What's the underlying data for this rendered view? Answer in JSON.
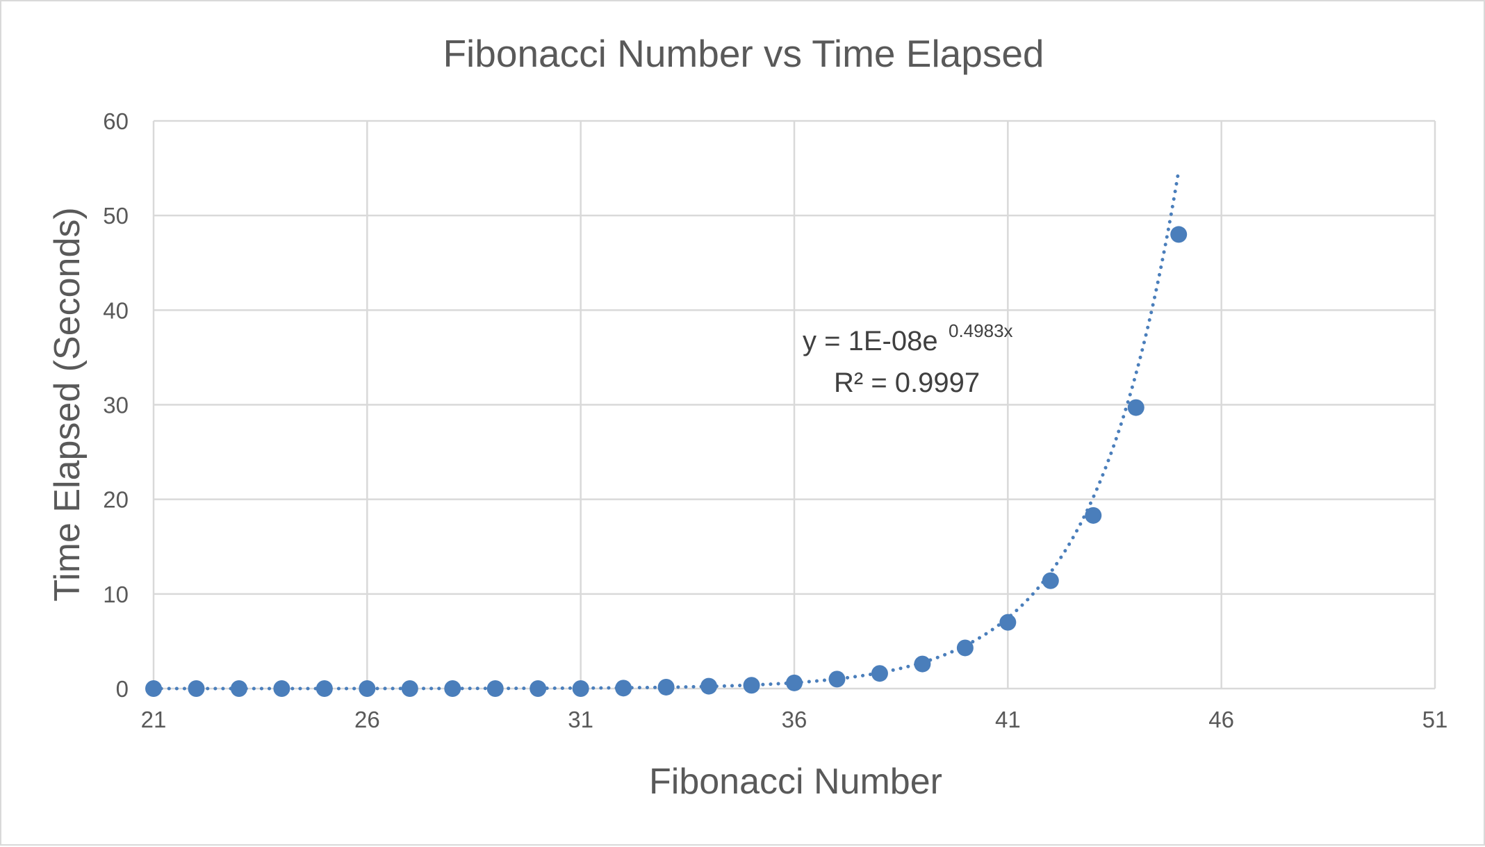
{
  "chart_data": {
    "type": "scatter",
    "title": "Fibonacci Number vs Time Elapsed",
    "xlabel": "Fibonacci Number",
    "ylabel": "Time Elapsed (Seconds)",
    "xlim": [
      21,
      51
    ],
    "ylim": [
      0,
      60
    ],
    "xticks": [
      21,
      26,
      31,
      36,
      41,
      46,
      51
    ],
    "yticks": [
      0,
      10,
      20,
      30,
      40,
      50,
      60
    ],
    "grid": true,
    "legend": "none",
    "series": [
      {
        "color": "#4a7ebb",
        "x": [
          21,
          22,
          23,
          24,
          25,
          26,
          27,
          28,
          29,
          30,
          31,
          32,
          33,
          34,
          35,
          36,
          37,
          38,
          39,
          40,
          41,
          42,
          43,
          44,
          45
        ],
        "y": [
          0.0,
          0.0,
          0.0,
          0.0,
          0.0,
          0.0,
          0.0,
          0.0,
          0.0,
          0.0,
          0.0,
          0.05,
          0.15,
          0.25,
          0.35,
          0.6,
          1.0,
          1.6,
          2.6,
          4.3,
          7.0,
          11.4,
          18.3,
          29.7,
          48.0
        ]
      }
    ],
    "trendline": {
      "type": "exponential",
      "style": "dotted",
      "a": 1e-08,
      "b": 0.4983,
      "x_range": [
        21,
        45
      ],
      "equation_prefix": "y = 1E-08e",
      "equation_exponent": "0.4983x",
      "r_squared_label": "R² = 0.9997"
    }
  }
}
